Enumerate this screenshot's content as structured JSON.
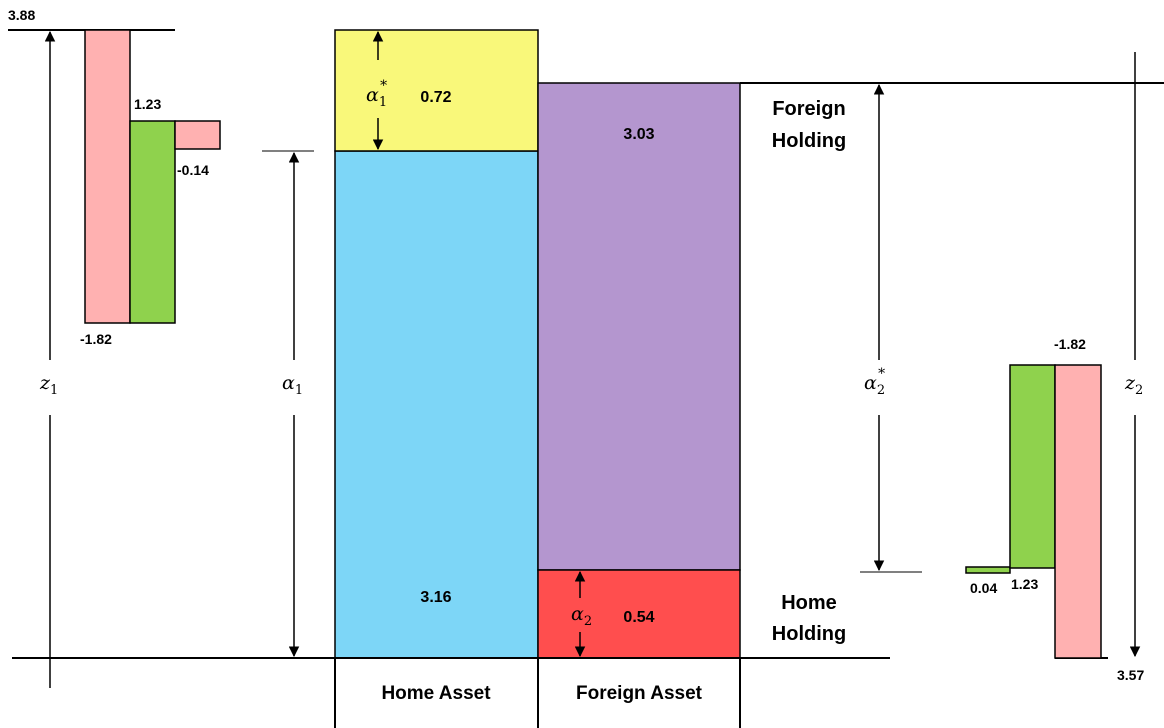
{
  "colors": {
    "home_holding_home": "#7dd6f7",
    "home_holding_foreign": "#ff4e4e",
    "foreign_holding_home": "#f9f87a",
    "foreign_holding_foreign": "#b496cf",
    "z_pink": "#ffb1b1",
    "z_green": "#8fd24d",
    "line": "#000000"
  },
  "columns": {
    "home_asset": "Home Asset",
    "foreign_asset": "Foreign Asset"
  },
  "rows": {
    "foreign_holding_line1": "Foreign",
    "foreign_holding_line2": "Holding",
    "home_holding_line1": "Home",
    "home_holding_line2": "Holding"
  },
  "blocks": {
    "home_asset_home_holding": "3.16",
    "home_asset_foreign_holding": "0.72",
    "foreign_asset_foreign_holding": "3.03",
    "foreign_asset_home_holding": "0.54"
  },
  "greek": {
    "alpha": "α",
    "z": "z",
    "star": "*",
    "sub1": "1",
    "sub2": "2"
  },
  "left_bars": {
    "top": "3.88",
    "green": "1.23",
    "small_pink": "-0.14",
    "bottom": "-1.82"
  },
  "right_bars": {
    "top": "-1.82",
    "small_green": "0.04",
    "green": "1.23",
    "bottom": "3.57"
  }
}
